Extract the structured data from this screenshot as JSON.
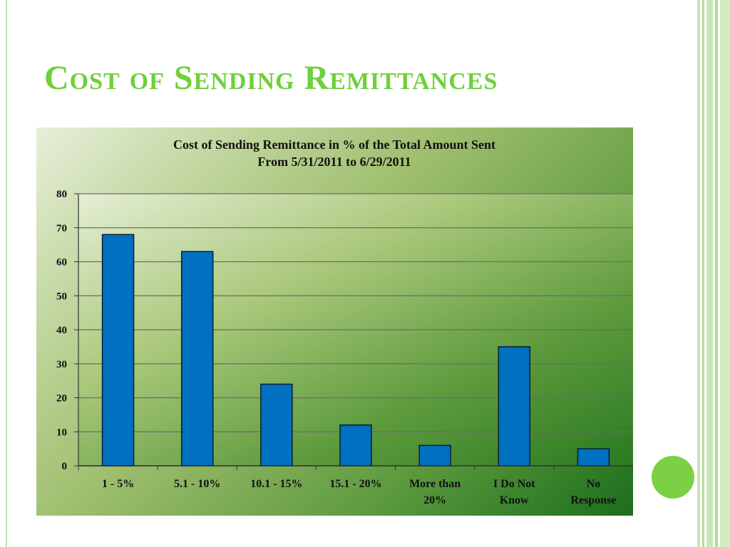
{
  "slide": {
    "title": "Cost of Sending Remittances"
  },
  "chart_data": {
    "type": "bar",
    "title": "Cost of Sending Remittance in % of the Total Amount Sent",
    "subtitle": "From 5/31/2011 to 6/29/2011",
    "categories": [
      "1 - 5%",
      "5.1 - 10%",
      "10.1 - 15%",
      "15.1 - 20%",
      "More than 20%",
      "I Do Not Know",
      "No Response"
    ],
    "category_lines": [
      [
        "1 - 5%"
      ],
      [
        "5.1 - 10%"
      ],
      [
        "10.1 - 15%"
      ],
      [
        "15.1 - 20%"
      ],
      [
        "More than",
        "20%"
      ],
      [
        "I Do Not",
        "Know"
      ],
      [
        "No",
        "Response"
      ]
    ],
    "values": [
      68,
      63,
      24,
      12,
      6,
      35,
      5
    ],
    "ylim": [
      0,
      80
    ],
    "yticks": [
      0,
      10,
      20,
      30,
      40,
      50,
      60,
      70,
      80
    ],
    "grid": true,
    "legend": "none",
    "bar_color": "#0070c0",
    "xlabel": "",
    "ylabel": ""
  },
  "colors": {
    "title": "#6fd03a",
    "accent_dot": "#7cd044"
  }
}
